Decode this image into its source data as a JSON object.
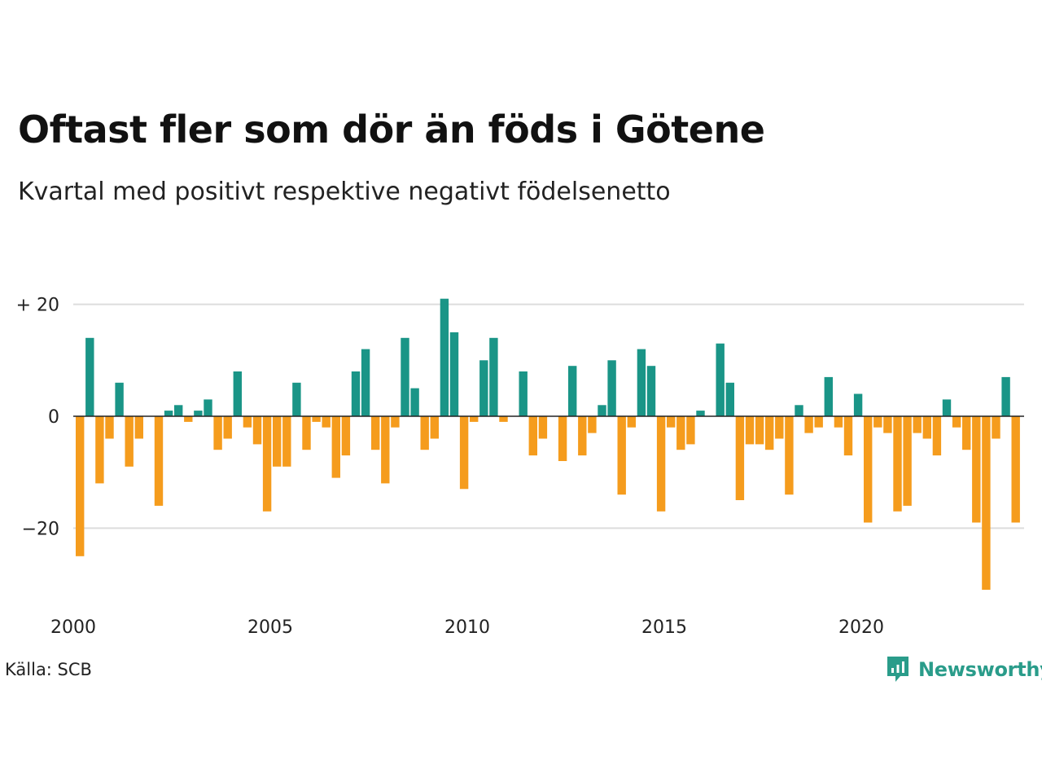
{
  "header": {
    "title": "Oftast fler som dör än föds i Götene",
    "subtitle": "Kvartal med positivt respektive negativt födelsenetto"
  },
  "footer": {
    "source": "Källa: SCB",
    "brand": "Newsworthy",
    "brand_icon": "newsworthy-logo-icon"
  },
  "colors": {
    "positive": "#1a9587",
    "negative": "#f59c1d",
    "grid": "#dddddd",
    "zero_line": "#222222"
  },
  "chart_data": {
    "type": "bar",
    "title": "Oftast fler som dör än föds i Götene",
    "subtitle": "Kvartal med positivt respektive negativt födelsenetto",
    "x_start": 2000,
    "periods_per_year": 4,
    "x_ticks": [
      "2000",
      "2005",
      "2010",
      "2015",
      "2020"
    ],
    "y_ticks": [
      {
        "value": 20,
        "label": "+ 20"
      },
      {
        "value": 0,
        "label": "0"
      },
      {
        "value": -20,
        "label": "−20"
      }
    ],
    "ylim": [
      -32,
      22
    ],
    "grid": true,
    "values": [
      -25,
      14,
      -12,
      -4,
      6,
      -9,
      -4,
      0,
      -16,
      1,
      2,
      -1,
      1,
      3,
      -6,
      -4,
      8,
      -2,
      -5,
      -17,
      -9,
      -9,
      6,
      -6,
      -1,
      -2,
      -11,
      -7,
      8,
      12,
      -6,
      -12,
      -2,
      14,
      5,
      -6,
      -4,
      21,
      15,
      -13,
      -1,
      10,
      14,
      -1,
      0,
      8,
      -7,
      -4,
      0,
      -8,
      9,
      -7,
      -3,
      2,
      10,
      -14,
      -2,
      12,
      9,
      -17,
      -2,
      -6,
      -5,
      1,
      0,
      13,
      6,
      -15,
      -5,
      -5,
      -6,
      -4,
      -14,
      2,
      -3,
      -2,
      7,
      -2,
      -7,
      4,
      -19,
      -2,
      -3,
      -17,
      -16,
      -3,
      -4,
      -7,
      3,
      -2,
      -6,
      -19,
      -31,
      -4,
      7,
      -19
    ]
  }
}
